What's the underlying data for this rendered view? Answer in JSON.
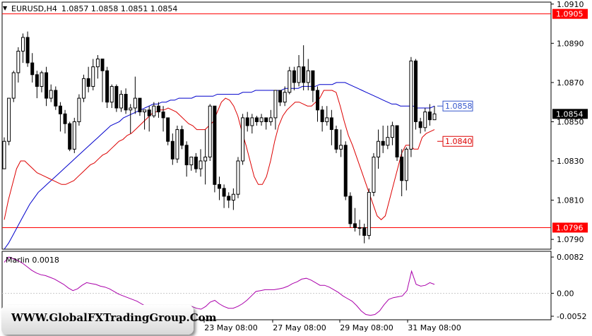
{
  "header": {
    "symbol": "EURUSD,H4",
    "ohlc": "1.0857 1.0858 1.0851 1.0854"
  },
  "colors": {
    "price_line": "#ff0000",
    "ma_fast": "#dd0000",
    "ma_slow": "#0000cc",
    "oscillator": "#aa00aa",
    "blue_label": "#3355cc",
    "red_label": "#dd0000",
    "current_price_bg": "#000000"
  },
  "main_axis_labels": [
    "1.0910",
    "1.0890",
    "1.0870",
    "1.0850",
    "1.0830",
    "1.0810",
    "1.0790"
  ],
  "horizontal_levels": [
    {
      "value": 1.0905,
      "label": "1.0905"
    },
    {
      "value": 1.0796,
      "label": "1.0796"
    }
  ],
  "current_price": {
    "value": 1.0854,
    "label": "1.0854"
  },
  "annotations": [
    {
      "text": "1.0858",
      "value": 1.0858,
      "color": "blue"
    },
    {
      "text": "1.0840",
      "value": 1.084,
      "color": "red"
    }
  ],
  "oscillator": {
    "name": "Marlin 0.0018",
    "axis_labels": [
      "0.0082",
      "0.00",
      "-0.0052"
    ]
  },
  "x_labels": [
    "23 May 08:00",
    "27 May 08:00",
    "29 May 08:00",
    "31 May 08:00"
  ],
  "watermark": "WWW.GlobalFXTradingGroup.Com",
  "chart_data": {
    "type": "candlestick",
    "title": "EURUSD,H4",
    "ylim": [
      1.0785,
      1.0911
    ],
    "bars": [
      [
        1.0826,
        1.084,
        1.0826,
        1.0842
      ],
      [
        1.084,
        1.0862,
        1.0838,
        1.0862
      ],
      [
        1.0862,
        1.0875,
        1.086,
        1.0876
      ],
      [
        1.0875,
        1.0886,
        1.087,
        1.0888
      ],
      [
        1.0886,
        1.0893,
        1.088,
        1.0895
      ],
      [
        1.0893,
        1.088,
        1.0878,
        1.0896
      ],
      [
        1.088,
        1.0874,
        1.087,
        1.0885
      ],
      [
        1.0874,
        1.0868,
        1.0862,
        1.0876
      ],
      [
        1.0868,
        1.0875,
        1.0865,
        1.0876
      ],
      [
        1.0875,
        1.0862,
        1.0858,
        1.0878
      ],
      [
        1.0862,
        1.0866,
        1.086,
        1.0869
      ],
      [
        1.0866,
        1.0858,
        1.0856,
        1.0868
      ],
      [
        1.0858,
        1.0854,
        1.0845,
        1.086
      ],
      [
        1.0854,
        1.0849,
        1.0844,
        1.0856
      ],
      [
        1.0849,
        1.0836,
        1.0835,
        1.085
      ],
      [
        1.0836,
        1.085,
        1.0834,
        1.0852
      ],
      [
        1.085,
        1.0862,
        1.0848,
        1.0864
      ],
      [
        1.0862,
        1.0872,
        1.086,
        1.0874
      ],
      [
        1.0872,
        1.0868,
        1.0865,
        1.0878
      ],
      [
        1.0868,
        1.0878,
        1.0866,
        1.0882
      ],
      [
        1.0878,
        1.0882,
        1.0872,
        1.0884
      ],
      [
        1.0882,
        1.0876,
        1.086,
        1.088
      ],
      [
        1.0876,
        1.086,
        1.0857,
        1.0878
      ],
      [
        1.086,
        1.0868,
        1.0857,
        1.0869
      ],
      [
        1.0868,
        1.0857,
        1.0855,
        1.0869
      ],
      [
        1.0857,
        1.0864,
        1.0855,
        1.0866
      ],
      [
        1.0864,
        1.0856,
        1.0854,
        1.0867
      ],
      [
        1.0856,
        1.0857,
        1.0844,
        1.0859
      ],
      [
        1.0857,
        1.0862,
        1.0854,
        1.0873
      ],
      [
        1.0862,
        1.0855,
        1.0853,
        1.0862
      ],
      [
        1.0855,
        1.0856,
        1.0846,
        1.0856
      ],
      [
        1.0856,
        1.0853,
        1.0845,
        1.0858
      ],
      [
        1.0853,
        1.0858,
        1.0852,
        1.086
      ],
      [
        1.0858,
        1.0855,
        1.0852,
        1.086
      ],
      [
        1.0855,
        1.0852,
        1.0845,
        1.0858
      ],
      [
        1.0852,
        1.084,
        1.0838,
        1.0852
      ],
      [
        1.084,
        1.0831,
        1.0828,
        1.0844
      ],
      [
        1.0831,
        1.0846,
        1.0829,
        1.0848
      ],
      [
        1.0846,
        1.0838,
        1.0836,
        1.0848
      ],
      [
        1.0838,
        1.0828,
        1.0822,
        1.084
      ],
      [
        1.0828,
        1.0832,
        1.0825,
        1.0832
      ],
      [
        1.0832,
        1.0826,
        1.0824,
        1.0834
      ],
      [
        1.0826,
        1.083,
        1.0822,
        1.0836
      ],
      [
        1.083,
        1.0832,
        1.0818,
        1.0846
      ],
      [
        1.0832,
        1.0858,
        1.083,
        1.0859
      ],
      [
        1.0858,
        1.0818,
        1.0814,
        1.0858
      ],
      [
        1.0818,
        1.0816,
        1.081,
        1.0822
      ],
      [
        1.0816,
        1.0812,
        1.0806,
        1.0818
      ],
      [
        1.0812,
        1.081,
        1.0806,
        1.0814
      ],
      [
        1.081,
        1.0813,
        1.0805,
        1.0816
      ],
      [
        1.0813,
        1.083,
        1.0811,
        1.0832
      ],
      [
        1.083,
        1.0852,
        1.0828,
        1.0854
      ],
      [
        1.0852,
        1.0848,
        1.0845,
        1.0855
      ],
      [
        1.0848,
        1.0852,
        1.0844,
        1.0854
      ],
      [
        1.0852,
        1.085,
        1.0848,
        1.0853
      ],
      [
        1.085,
        1.0852,
        1.0848,
        1.0854
      ],
      [
        1.0852,
        1.085,
        1.0846,
        1.0852
      ],
      [
        1.085,
        1.0852,
        1.0848,
        1.0856
      ],
      [
        1.0852,
        1.0866,
        1.0846,
        1.0866
      ],
      [
        1.0866,
        1.086,
        1.0858,
        1.0866
      ],
      [
        1.086,
        1.0865,
        1.0858,
        1.0868
      ],
      [
        1.0865,
        1.0876,
        1.0864,
        1.0878
      ],
      [
        1.0876,
        1.087,
        1.0866,
        1.0878
      ],
      [
        1.087,
        1.0878,
        1.0868,
        1.0884
      ],
      [
        1.0878,
        1.087,
        1.0866,
        1.0889
      ],
      [
        1.087,
        1.0876,
        1.0866,
        1.0882
      ],
      [
        1.0876,
        1.0866,
        1.086,
        1.0876
      ],
      [
        1.0866,
        1.0856,
        1.085,
        1.0868
      ],
      [
        1.0856,
        1.085,
        1.0845,
        1.0858
      ],
      [
        1.085,
        1.0852,
        1.0848,
        1.0858
      ],
      [
        1.0852,
        1.0846,
        1.0838,
        1.0856
      ],
      [
        1.0846,
        1.0836,
        1.0834,
        1.0848
      ],
      [
        1.0836,
        1.0838,
        1.0832,
        1.0846
      ],
      [
        1.0838,
        1.0812,
        1.081,
        1.084
      ],
      [
        1.0812,
        1.0798,
        1.0796,
        1.0814
      ],
      [
        1.0798,
        1.0796,
        1.0794,
        1.0806
      ],
      [
        1.0796,
        1.0796,
        1.0792,
        1.08
      ],
      [
        1.0796,
        1.0792,
        1.0788,
        1.0798
      ],
      [
        1.0792,
        1.0814,
        1.079,
        1.0816
      ],
      [
        1.0814,
        1.0832,
        1.0812,
        1.0834
      ],
      [
        1.0832,
        1.084,
        1.0826,
        1.0846
      ],
      [
        1.084,
        1.0838,
        1.0834,
        1.0848
      ],
      [
        1.0838,
        1.0842,
        1.0836,
        1.0848
      ],
      [
        1.0842,
        1.0848,
        1.0838,
        1.085
      ],
      [
        1.0848,
        1.0832,
        1.083,
        1.0848
      ],
      [
        1.0832,
        1.082,
        1.0812,
        1.0836
      ],
      [
        1.082,
        1.0836,
        1.0815,
        1.0837
      ],
      [
        1.0836,
        1.0881,
        1.0832,
        1.0883
      ],
      [
        1.0881,
        1.085,
        1.0846,
        1.0882
      ],
      [
        1.085,
        1.0847,
        1.0844,
        1.0852
      ],
      [
        1.0847,
        1.0855,
        1.0845,
        1.0857
      ],
      [
        1.0855,
        1.0851,
        1.0848,
        1.0859
      ],
      [
        1.0851,
        1.0854,
        1.0851,
        1.0858
      ]
    ],
    "ma_fast": [
      1.08,
      1.081,
      1.0818,
      1.0826,
      1.083,
      1.083,
      1.0828,
      1.0826,
      1.0824,
      1.0823,
      1.0822,
      1.0821,
      1.082,
      1.0819,
      1.0818,
      1.0818,
      1.0819,
      1.082,
      1.0822,
      1.0824,
      1.0826,
      1.0828,
      1.0829,
      1.0831,
      1.0833,
      1.0834,
      1.0836,
      1.0838,
      1.084,
      1.0841,
      1.0843,
      1.0844,
      1.0846,
      1.0848,
      1.085,
      1.0852,
      1.0854,
      1.0855,
      1.0856,
      1.0856,
      1.0857,
      1.0856,
      1.0855,
      1.0853,
      1.0851,
      1.0849,
      1.0848,
      1.0846,
      1.0846,
      1.0846,
      1.0848,
      1.085,
      1.0855,
      1.086,
      1.0862,
      1.0861,
      1.0858,
      1.0853,
      1.0845,
      1.0838,
      1.083,
      1.0822,
      1.0818,
      1.0818,
      1.0822,
      1.083,
      1.084,
      1.0848,
      1.0853,
      1.0856,
      1.0858,
      1.086,
      1.086,
      1.0859,
      1.0858,
      1.0858,
      1.086,
      1.0862,
      1.0866,
      1.0866,
      1.0866,
      1.0865,
      1.0858,
      1.085,
      1.0843,
      1.0838,
      1.0832,
      1.0826,
      1.082,
      1.0814,
      1.0808,
      1.0802,
      1.08,
      1.0802,
      1.081,
      1.0818,
      1.0826,
      1.0834,
      1.0838,
      1.0838,
      1.0836,
      1.0836,
      1.0842,
      1.0844,
      1.0845,
      1.0846
    ],
    "ma_slow": [
      1.0785,
      1.0788,
      1.0792,
      1.0796,
      1.08,
      1.0804,
      1.0808,
      1.0811,
      1.0814,
      1.0816,
      1.0818,
      1.082,
      1.0822,
      1.0824,
      1.0826,
      1.0828,
      1.083,
      1.0832,
      1.0834,
      1.0836,
      1.0838,
      1.084,
      1.0842,
      1.0844,
      1.0846,
      1.0848,
      1.0849,
      1.085,
      1.0852,
      1.0853,
      1.0854,
      1.0855,
      1.0856,
      1.0857,
      1.0858,
      1.0859,
      1.0859,
      1.086,
      1.086,
      1.0861,
      1.0861,
      1.0862,
      1.0862,
      1.0862,
      1.0862,
      1.0863,
      1.0863,
      1.0863,
      1.0863,
      1.0863,
      1.0864,
      1.0864,
      1.0864,
      1.0864,
      1.0864,
      1.0864,
      1.0865,
      1.0865,
      1.0865,
      1.0866,
      1.0866,
      1.0866,
      1.0866,
      1.0866,
      1.0866,
      1.0866,
      1.0867,
      1.0867,
      1.0867,
      1.0867,
      1.0868,
      1.0868,
      1.0868,
      1.0868,
      1.0869,
      1.0869,
      1.0869,
      1.0869,
      1.087,
      1.087,
      1.087,
      1.0869,
      1.0868,
      1.0867,
      1.0866,
      1.0865,
      1.0864,
      1.0863,
      1.0862,
      1.0861,
      1.086,
      1.0859,
      1.0859,
      1.0858,
      1.0858,
      1.0858,
      1.0858,
      1.0857,
      1.0857,
      1.0857,
      1.0857,
      1.0858
    ],
    "oscillator_values": [
      0.007,
      0.0082,
      0.0078,
      0.0074,
      0.0068,
      0.006,
      0.0052,
      0.0046,
      0.0042,
      0.004,
      0.0036,
      0.0032,
      0.0026,
      0.002,
      0.0012,
      0.0006,
      0.001,
      0.0018,
      0.0024,
      0.0022,
      0.002,
      0.0016,
      0.0014,
      0.001,
      0.0004,
      -0.0002,
      -0.0006,
      -0.001,
      -0.0014,
      -0.0018,
      -0.0024,
      -0.003,
      -0.0036,
      -0.0042,
      -0.0046,
      -0.0048,
      -0.005,
      -0.0046,
      -0.004,
      -0.0034,
      -0.003,
      -0.003,
      -0.0034,
      -0.0036,
      -0.003,
      -0.002,
      -0.0016,
      -0.0024,
      -0.003,
      -0.0034,
      -0.0034,
      -0.003,
      -0.0024,
      -0.0016,
      -0.0006,
      0.0004,
      0.0006,
      0.0008,
      0.0008,
      0.0008,
      0.001,
      0.0012,
      0.0016,
      0.0022,
      0.0026,
      0.0032,
      0.0034,
      0.003,
      0.0024,
      0.0018,
      0.0018,
      0.0014,
      0.0008,
      0.0002,
      -0.0006,
      -0.0012,
      -0.0018,
      -0.0028,
      -0.004,
      -0.0048,
      -0.005,
      -0.0048,
      -0.004,
      -0.0026,
      -0.0014,
      -0.001,
      -0.0008,
      -0.0006,
      0.0006,
      0.005,
      0.002,
      0.0016,
      0.0018,
      0.0024,
      0.002
    ],
    "oscillator_ylim": [
      -0.006,
      0.0095
    ]
  }
}
